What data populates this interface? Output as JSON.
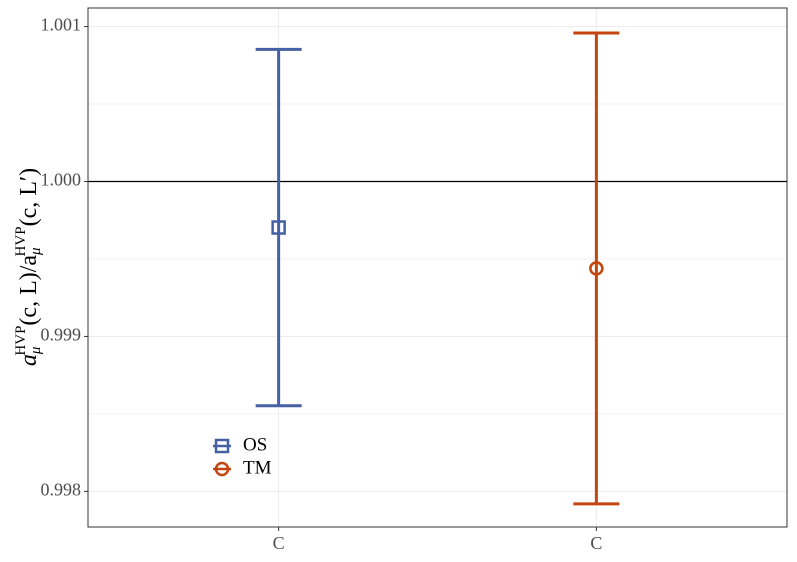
{
  "chart_data": {
    "type": "errorbar",
    "ylabel_parts": [
      "a",
      "μ",
      "HVP",
      "(c, L)/a",
      "μ",
      "HVP",
      "(c, L′)"
    ],
    "categories": [
      "C",
      "C"
    ],
    "series": [
      {
        "name": "OS",
        "color": "#4560a3",
        "marker": "square",
        "values": [
          0.999703,
          null
        ],
        "errors": [
          0.00115,
          null
        ]
      },
      {
        "name": "TM",
        "color": "#c4450f",
        "marker": "circle",
        "values": [
          null,
          0.999439
        ],
        "errors": [
          null,
          0.00152
        ]
      }
    ],
    "ylim": [
      0.99777,
      1.00112
    ],
    "yticks": [
      0.998,
      0.999,
      {
        "value": 1,
        "label": "1.000"
      },
      1.001
    ],
    "yminor": [
      0.9985,
      0.9995,
      1.0005
    ],
    "hline": 1,
    "grid": true,
    "legend": "bottom-left"
  }
}
